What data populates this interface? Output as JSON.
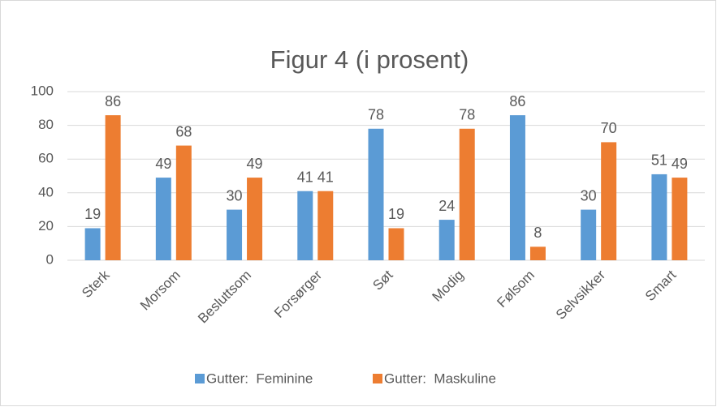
{
  "chart_data": {
    "type": "bar",
    "title": "Figur 4 (i prosent)",
    "categories": [
      "Sterk",
      "Morsom",
      "Besluttsom",
      "Forsørger",
      "Søt",
      "Modig",
      "Følsom",
      "Selvsikker",
      "Smart"
    ],
    "series": [
      {
        "name": "Gutter:  Feminine",
        "color": "#5b9bd5",
        "values": [
          19,
          49,
          30,
          41,
          78,
          24,
          86,
          30,
          51
        ]
      },
      {
        "name": "Gutter:  Maskuline",
        "color": "#ed7d31",
        "values": [
          86,
          68,
          49,
          41,
          19,
          78,
          8,
          70,
          49
        ]
      }
    ],
    "ylim": [
      0,
      100
    ],
    "yticks": [
      0,
      20,
      40,
      60,
      80,
      100
    ],
    "grid": true,
    "legend": "bottom"
  }
}
